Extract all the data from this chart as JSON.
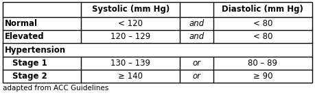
{
  "title_caption": "adapted from ACC Guidelines",
  "col_headers": [
    "",
    "Systolic (mm Hg)",
    "",
    "Diastolic (mm Hg)"
  ],
  "rows": [
    {
      "label": "Normal",
      "label_bold": true,
      "label_indent": false,
      "systolic": "< 120",
      "connector": "and",
      "diastolic": "< 80",
      "span": false
    },
    {
      "label": "Elevated",
      "label_bold": true,
      "label_indent": false,
      "systolic": "120 – 129",
      "connector": "and",
      "diastolic": "< 80",
      "span": false
    },
    {
      "label": "Hypertension",
      "label_bold": true,
      "label_indent": false,
      "systolic": "",
      "connector": "",
      "diastolic": "",
      "span": true
    },
    {
      "label": "Stage 1",
      "label_bold": true,
      "label_indent": true,
      "systolic": "130 – 139",
      "connector": "or",
      "diastolic": "80 – 89",
      "span": false
    },
    {
      "label": "Stage 2",
      "label_bold": true,
      "label_indent": true,
      "systolic": "≥ 140",
      "connector": "or",
      "diastolic": "≥ 90",
      "span": false
    }
  ],
  "border_color": "#000000",
  "text_color": "#000000",
  "bg_color": "#ffffff",
  "caption_fontsize": 7.5,
  "header_fontsize": 8.5,
  "cell_fontsize": 8.5,
  "fig_width": 4.59,
  "fig_height": 1.39,
  "dpi": 100
}
